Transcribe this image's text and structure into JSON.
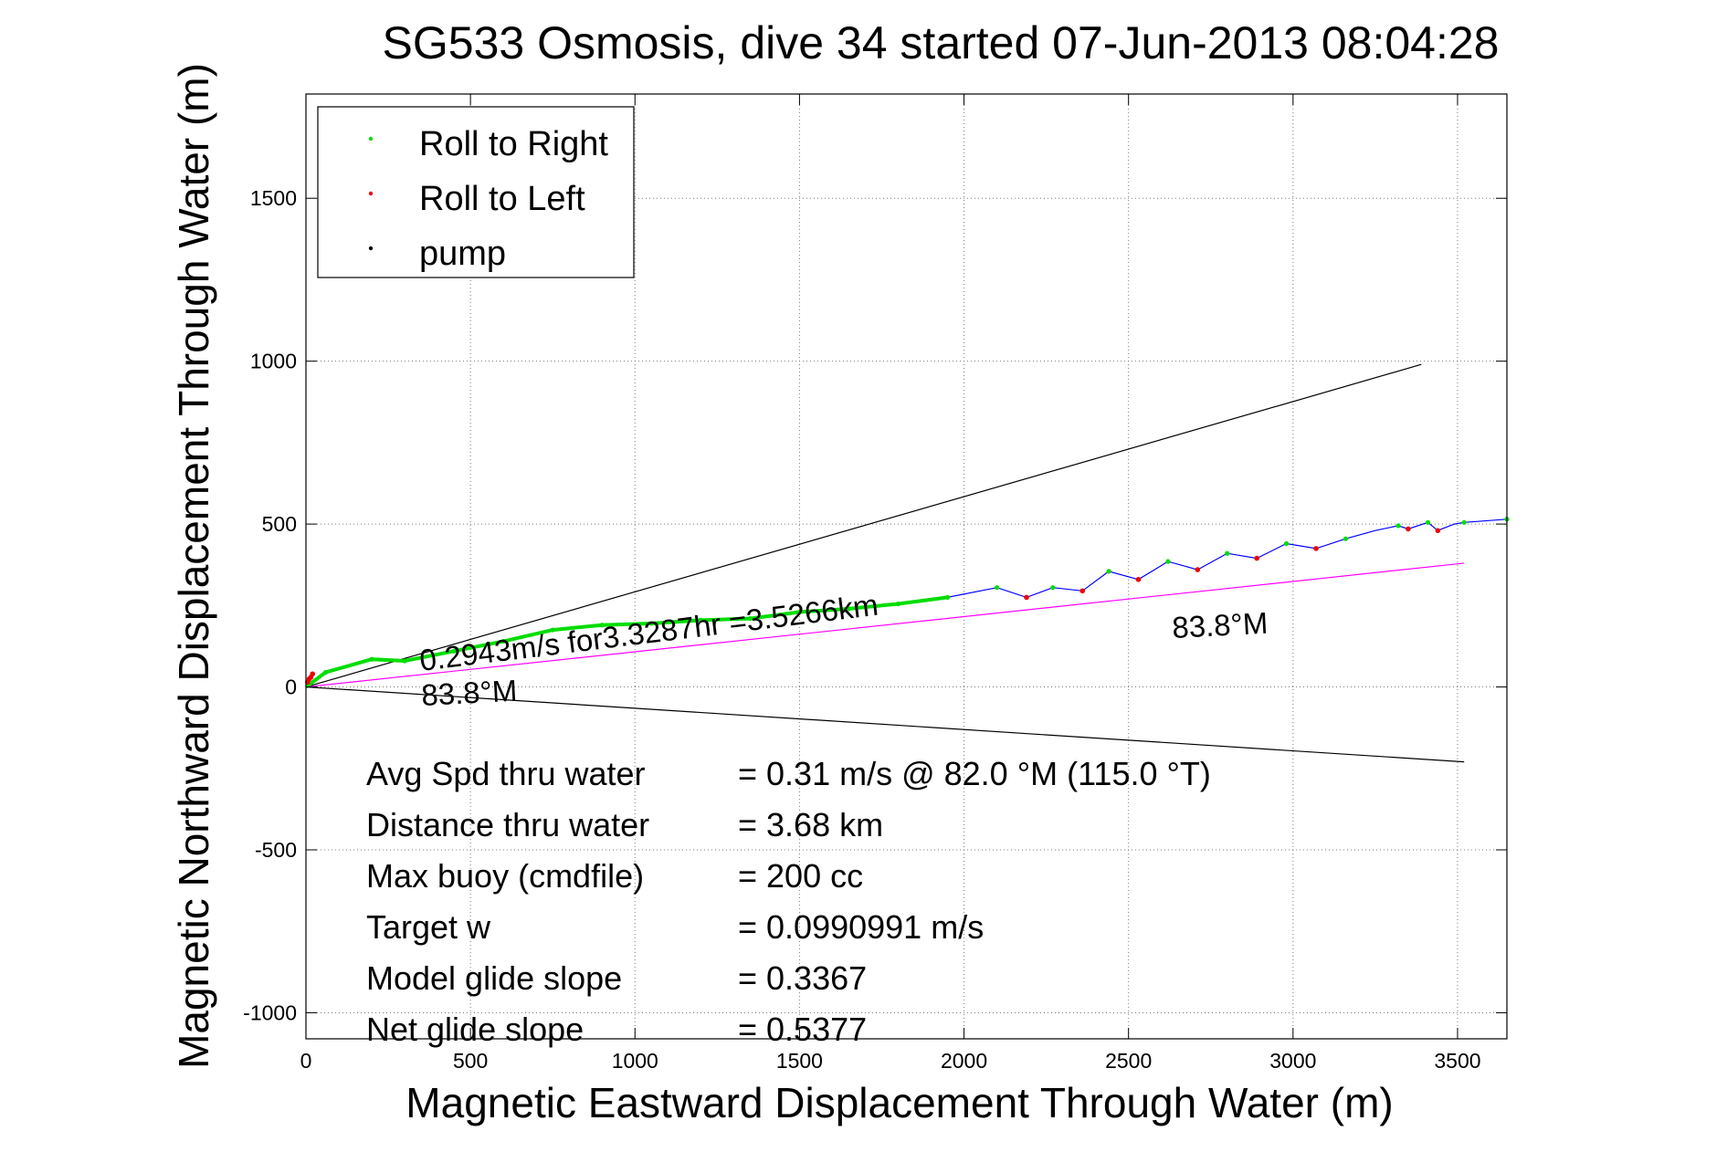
{
  "chart_data": {
    "type": "line",
    "title": "SG533 Osmosis, dive 34 started 07-Jun-2013 08:04:28",
    "xlabel": "Magnetic Eastward Displacement Through Water (m)",
    "ylabel": "Magnetic Northward Displacement Through Water (m)",
    "xlim": [
      0,
      3650
    ],
    "ylim": [
      -1080,
      1820
    ],
    "xticks": [
      0,
      500,
      1000,
      1500,
      2000,
      2500,
      3000,
      3500
    ],
    "yticks": [
      -1000,
      -500,
      0,
      500,
      1000,
      1500
    ],
    "grid": true,
    "legend_position": "top-left",
    "legend": [
      {
        "label": "Roll to Right",
        "color": "#00dd00"
      },
      {
        "label": "Roll to Left",
        "color": "#ee0000"
      },
      {
        "label": "pump",
        "color": "#000000"
      }
    ],
    "track": {
      "name": "glider track",
      "color": "#0000ff",
      "x": [
        0,
        60,
        200,
        300,
        450,
        600,
        750,
        900,
        1050,
        1200,
        1350,
        1500,
        1650,
        1800,
        1950,
        2100,
        2190,
        2270,
        2360,
        2440,
        2530,
        2620,
        2710,
        2800,
        2890,
        2980,
        3070,
        3160,
        3250,
        3320,
        3350,
        3410,
        3440,
        3490,
        3520,
        3650
      ],
      "y": [
        0,
        45,
        85,
        80,
        110,
        140,
        175,
        190,
        195,
        205,
        210,
        230,
        240,
        255,
        275,
        305,
        275,
        305,
        295,
        355,
        330,
        385,
        360,
        410,
        395,
        440,
        425,
        455,
        480,
        495,
        485,
        505,
        480,
        500,
        505,
        515
      ]
    },
    "right_roll_points": {
      "x": [
        60,
        200,
        300,
        450,
        600,
        750,
        900,
        1050,
        1200,
        1350,
        1500,
        1650,
        1800,
        1950,
        2100,
        2270,
        2440,
        2620,
        2800,
        2980,
        3160,
        3320,
        3410,
        3520,
        3650
      ],
      "y": [
        45,
        85,
        80,
        110,
        140,
        175,
        190,
        195,
        205,
        210,
        230,
        240,
        255,
        275,
        305,
        305,
        355,
        385,
        410,
        440,
        455,
        495,
        505,
        505,
        515
      ]
    },
    "left_roll_points": {
      "x": [
        5,
        10,
        15,
        20,
        2190,
        2360,
        2530,
        2710,
        2890,
        3070,
        3350,
        3440
      ],
      "y": [
        15,
        25,
        30,
        40,
        275,
        295,
        330,
        360,
        395,
        425,
        485,
        480
      ]
    },
    "reference_lines": [
      {
        "name": "upper bound",
        "color": "#000000",
        "x": [
          0,
          3390
        ],
        "y": [
          0,
          990
        ]
      },
      {
        "name": "lower bound",
        "color": "#000000",
        "x": [
          0,
          3520
        ],
        "y": [
          0,
          -230
        ]
      },
      {
        "name": "heading",
        "color": "#ff00ff",
        "x": [
          0,
          3520
        ],
        "y": [
          0,
          380
        ]
      }
    ],
    "annotations": {
      "speed_label": "0.2943m/s for3.3287hr =3.5266km",
      "heading_near": "83.8°M",
      "heading_far": "83.8°M"
    }
  },
  "stats": [
    {
      "label": "Avg Spd thru water",
      "value": "=  0.31 m/s @  82.0 °M (115.0 °T)"
    },
    {
      "label": "Distance thru water",
      "value": "=  3.68 km"
    },
    {
      "label": "Max buoy (cmdfile)",
      "value": "= 200 cc"
    },
    {
      "label": "Target w",
      "value": "= 0.0990991 m/s"
    },
    {
      "label": "Model glide slope",
      "value": "= 0.3367"
    },
    {
      "label": "Net glide slope",
      "value": "= 0.5377"
    }
  ]
}
